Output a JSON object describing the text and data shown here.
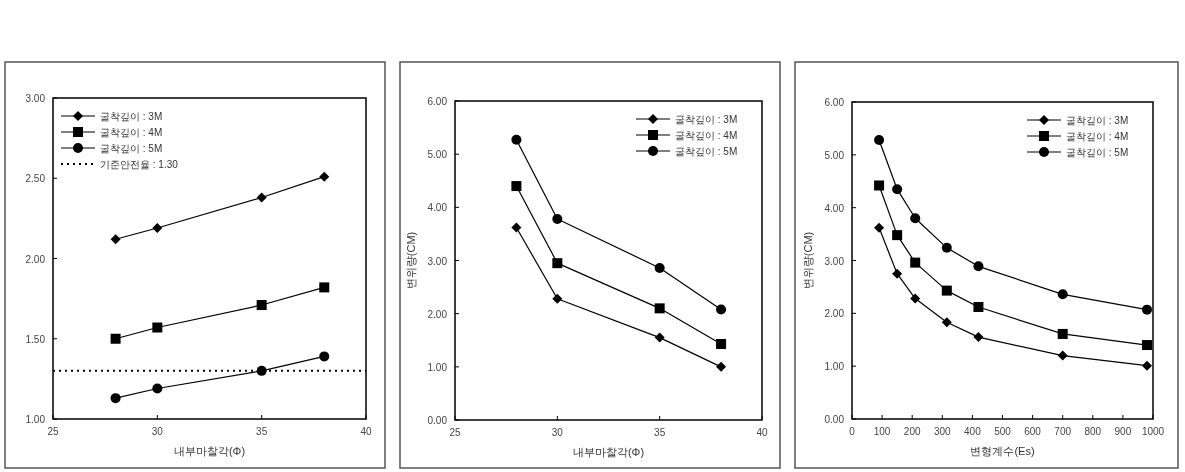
{
  "chart_data": [
    {
      "type": "line",
      "x": [
        28,
        30,
        35,
        38
      ],
      "xlabel": "내부마찰각(Φ)",
      "xlim": [
        25,
        40
      ],
      "xticks": [
        25,
        30,
        35,
        40
      ],
      "ylim": [
        1,
        3
      ],
      "yticks": [
        {
          "value": 1,
          "label": "1.00"
        },
        {
          "value": 1.5,
          "label": "1.50"
        },
        {
          "value": 2,
          "label": "2.00"
        },
        {
          "value": 2.5,
          "label": "2.50"
        },
        {
          "value": 3,
          "label": "3.00"
        }
      ],
      "legend": "top left",
      "series": [
        {
          "name": "굴착깊이 : 3M",
          "color": "#000000",
          "marker": "diamond",
          "values": [
            2.12,
            2.19,
            2.38,
            2.51
          ]
        },
        {
          "name": "굴착깊이 : 4M",
          "color": "#000000",
          "marker": "square",
          "values": [
            1.5,
            1.57,
            1.71,
            1.82
          ]
        },
        {
          "name": "굴착깊이 : 5M",
          "color": "#000000",
          "marker": "circle",
          "values": [
            1.13,
            1.19,
            1.3,
            1.39
          ]
        }
      ],
      "ref_lines": [
        {
          "axis": "y",
          "value": 1.3,
          "label": "기준안전율 : 1.30",
          "color": "#000000",
          "line_style": "dotted"
        }
      ]
    },
    {
      "type": "line",
      "x": [
        28,
        30,
        35,
        38
      ],
      "xlabel": "내부마찰각(Φ)",
      "ylabel": "변위량(CM)",
      "xlim": [
        25,
        40
      ],
      "xticks": [
        25,
        30,
        35,
        40
      ],
      "ylim": [
        0,
        6
      ],
      "yticks": [
        {
          "value": 0,
          "label": "0.00"
        },
        {
          "value": 1,
          "label": "1.00"
        },
        {
          "value": 2,
          "label": "2.00"
        },
        {
          "value": 3,
          "label": "3.00"
        },
        {
          "value": 4,
          "label": "4.00"
        },
        {
          "value": 5,
          "label": "5.00"
        },
        {
          "value": 6,
          "label": "6.00"
        }
      ],
      "legend": "top right",
      "series": [
        {
          "name": "굴착깊이 : 3M",
          "color": "#000000",
          "marker": "diamond",
          "values": [
            3.62,
            2.28,
            1.55,
            1.0
          ]
        },
        {
          "name": "굴착깊이 : 4M",
          "color": "#000000",
          "marker": "square",
          "values": [
            4.4,
            2.95,
            2.1,
            1.43
          ]
        },
        {
          "name": "굴착깊이 : 5M",
          "color": "#000000",
          "marker": "circle",
          "values": [
            5.27,
            3.78,
            2.86,
            2.08
          ]
        }
      ]
    },
    {
      "type": "line",
      "x": [
        90,
        150,
        210,
        315,
        420,
        700,
        980
      ],
      "xlabel": "변형계수(Es)",
      "ylabel": "변위량(CM)",
      "xlim": [
        0,
        1000
      ],
      "xticks": [
        0,
        100,
        200,
        300,
        400,
        500,
        600,
        700,
        800,
        900,
        1000
      ],
      "ylim": [
        0,
        6
      ],
      "yticks": [
        {
          "value": 0,
          "label": "0.00"
        },
        {
          "value": 1,
          "label": "1.00"
        },
        {
          "value": 2,
          "label": "2.00"
        },
        {
          "value": 3,
          "label": "3.00"
        },
        {
          "value": 4,
          "label": "4.00"
        },
        {
          "value": 5,
          "label": "5.00"
        },
        {
          "value": 6,
          "label": "6.00"
        }
      ],
      "legend": "top right",
      "series": [
        {
          "name": "굴착깊이 : 3M",
          "color": "#000000",
          "marker": "diamond",
          "values": [
            3.62,
            2.75,
            2.28,
            1.83,
            1.55,
            1.2,
            1.01
          ]
        },
        {
          "name": "굴착깊이 : 4M",
          "color": "#000000",
          "marker": "square",
          "values": [
            4.42,
            3.48,
            2.96,
            2.43,
            2.12,
            1.61,
            1.4
          ]
        },
        {
          "name": "굴착깊이 : 5M",
          "color": "#000000",
          "marker": "circle",
          "values": [
            5.28,
            4.35,
            3.8,
            3.24,
            2.89,
            2.36,
            2.07
          ]
        }
      ]
    }
  ]
}
